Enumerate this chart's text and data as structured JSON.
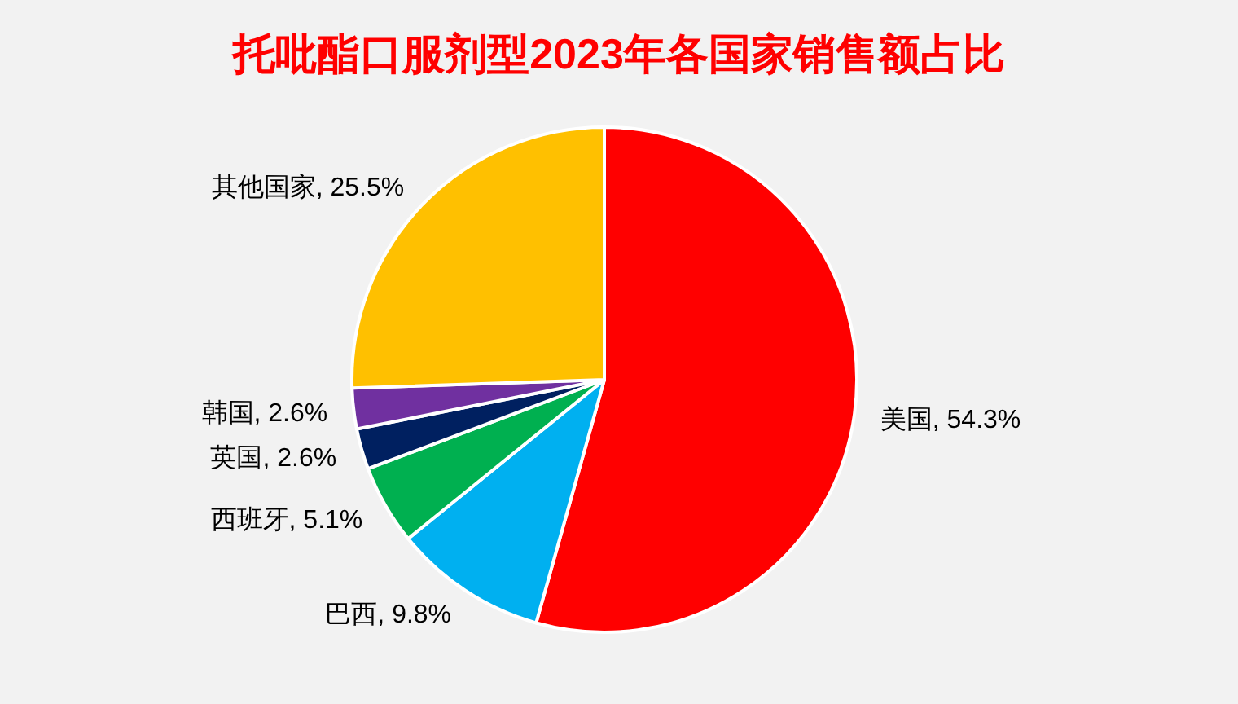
{
  "chart_data": {
    "type": "pie",
    "title": "托吡酯口服剂型2023年各国家销售额占比",
    "categories": [
      "美国",
      "巴西",
      "西班牙",
      "英国",
      "韩国",
      "其他国家"
    ],
    "values": [
      54.3,
      9.8,
      5.1,
      2.6,
      2.6,
      25.5
    ],
    "value_labels": [
      "54.3%",
      "9.8%",
      "5.1%",
      "2.6%",
      "2.6%",
      "25.5%"
    ],
    "colors": [
      "#ff0000",
      "#00b0f0",
      "#00b050",
      "#002060",
      "#7030a0",
      "#ffc000"
    ],
    "legend": false
  }
}
